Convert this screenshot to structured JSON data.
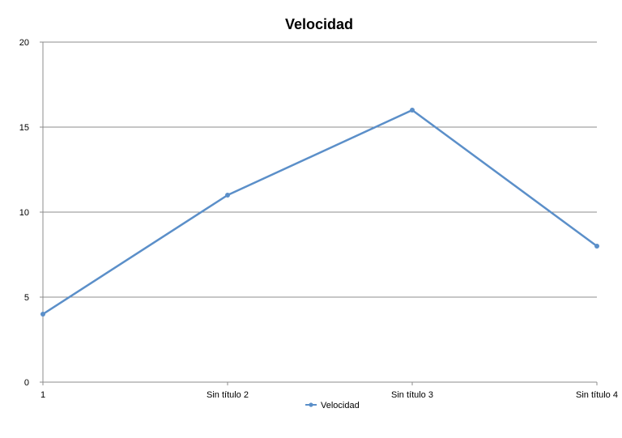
{
  "chart_data": {
    "type": "line",
    "title": "Velocidad",
    "xlabel": "",
    "ylabel": "",
    "categories": [
      "1",
      "Sin título 2",
      "Sin título 3",
      "Sin título 4"
    ],
    "series": [
      {
        "name": "Velocidad",
        "color": "#5b8fc9",
        "values": [
          4,
          11,
          16,
          8
        ]
      }
    ],
    "ylim": [
      0,
      20
    ],
    "yticks": [
      "0",
      "5",
      "10",
      "15",
      "20"
    ],
    "grid": true,
    "legend": "bottom"
  }
}
